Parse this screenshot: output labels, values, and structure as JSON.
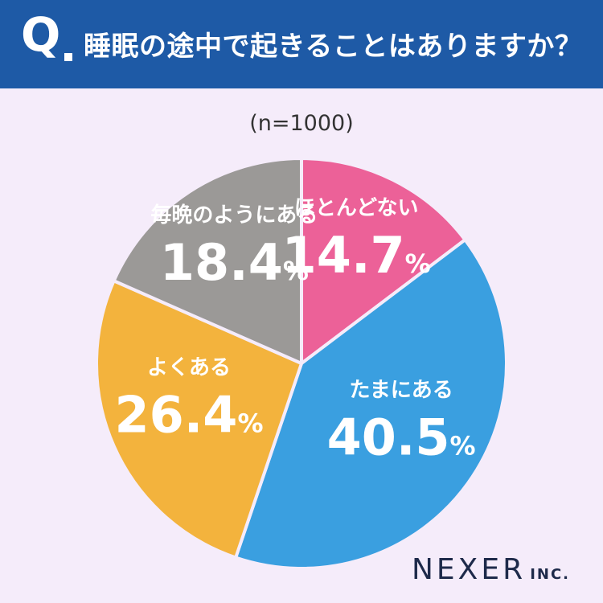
{
  "header": {
    "q_mark": "Q",
    "question": "睡眠の途中で起きることはありますか？"
  },
  "sample_size": "(n=1000)",
  "chart_data": {
    "type": "pie",
    "start_angle_deg": 0,
    "direction": "clockwise",
    "slices": [
      {
        "label": "ほとんどない",
        "value": 14.7,
        "display": "14.7",
        "color": "#ec6198"
      },
      {
        "label": "たまにある",
        "value": 40.5,
        "display": "40.5",
        "color": "#3a9fe0"
      },
      {
        "label": "よくある",
        "value": 26.4,
        "display": "26.4",
        "color": "#f3b33d"
      },
      {
        "label": "毎晩のようにある",
        "value": 18.4,
        "display": "18.4",
        "color": "#9b9997"
      }
    ],
    "unit": "%",
    "legend": "none"
  },
  "brand": {
    "main": "NEXER",
    "sub": "INC."
  }
}
